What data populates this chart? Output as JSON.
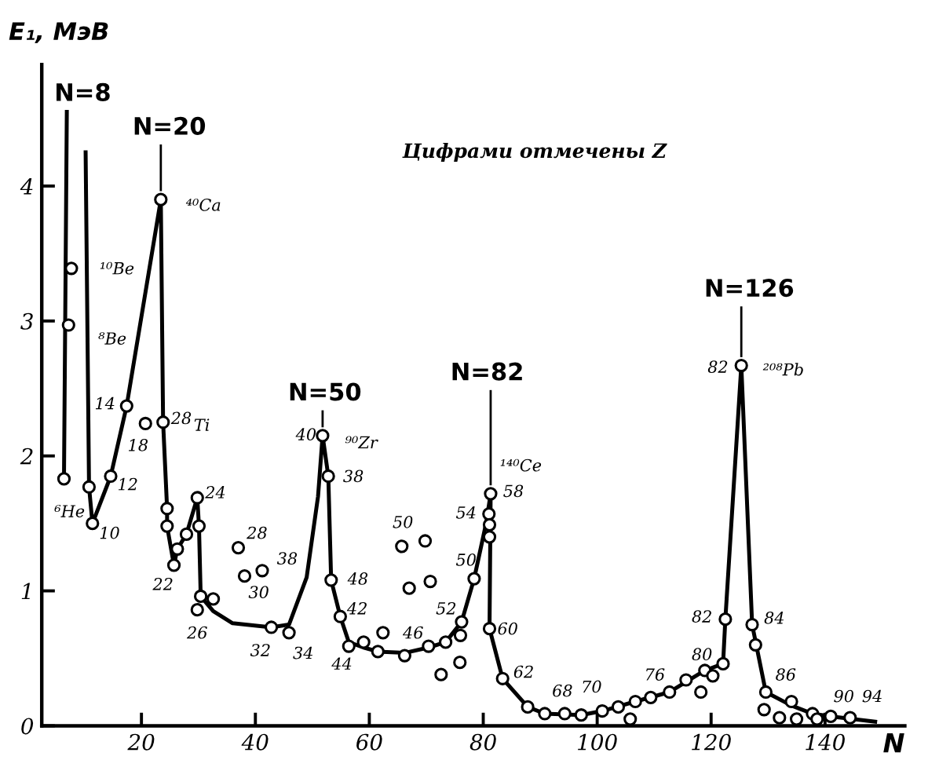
{
  "chart_data": {
    "type": "line",
    "xlabel": "N",
    "ylabel": "E₁, МэВ",
    "xlim": [
      2.5,
      154
    ],
    "ylim": [
      0,
      4.9
    ],
    "xticks": [
      20,
      40,
      60,
      80,
      100,
      120,
      140
    ],
    "yticks": [
      0,
      1,
      2,
      3,
      4
    ],
    "grid": false,
    "legend": false,
    "series": [
      {
        "color": "#000000",
        "marker": "none",
        "line_style": "solid",
        "x": [
          6.4,
          6.9
        ],
        "values": [
          1.83,
          4.55
        ]
      },
      {
        "color": "#000000",
        "marker": "none",
        "line_style": "solid",
        "x": [
          10.2,
          10.8,
          11.4,
          14.6,
          17.4,
          23.4,
          23.8,
          24.5,
          24.5,
          25.7,
          26.3,
          27.9,
          29.8,
          30.1,
          30.4,
          32.6,
          36,
          42.8,
          45.9,
          49,
          51,
          51.8,
          52.8,
          53.3,
          54.9,
          56.4,
          59,
          61.5,
          66.2,
          70.4,
          73.4,
          76.2,
          78.4,
          80.5,
          81.3,
          81.1,
          83.4,
          87.8,
          90.8,
          97.2,
          100.9,
          106.7,
          112.7,
          118.9,
          122.1,
          122.5,
          125.3,
          127.2,
          129.6,
          134.1,
          137.8,
          141,
          148.8
        ],
        "values": [
          4.25,
          1.77,
          1.5,
          1.85,
          2.37,
          3.9,
          2.25,
          1.61,
          1.48,
          1.19,
          1.31,
          1.42,
          1.69,
          1.48,
          0.96,
          0.85,
          0.76,
          0.73,
          0.75,
          1.1,
          1.7,
          2.15,
          1.85,
          1.08,
          0.81,
          0.62,
          0.58,
          0.55,
          0.54,
          0.58,
          0.62,
          0.77,
          1.09,
          1.5,
          1.72,
          0.72,
          0.35,
          0.14,
          0.09,
          0.08,
          0.11,
          0.18,
          0.25,
          0.41,
          0.46,
          0.79,
          2.67,
          0.75,
          0.25,
          0.15,
          0.09,
          0.07,
          0.03
        ]
      },
      {
        "type": "scatter",
        "color": "#000000",
        "marker": "circle",
        "x": [
          6.4,
          7.2,
          7.7,
          10.8,
          11.4,
          14.6,
          17.4,
          20.7,
          23.4,
          23.8,
          24.5,
          24.5,
          25.7,
          26.3,
          27.9,
          29.8,
          30.1,
          30.4,
          29.8,
          32.6,
          37,
          38.1,
          41.2,
          42.8,
          45.9,
          51.8,
          52.8,
          53.3,
          54.9,
          56.4,
          59,
          61.5,
          62.4,
          65.7,
          67,
          69.8,
          70.7,
          66.2,
          70.4,
          72.6,
          73.4,
          75.9,
          76,
          76.2,
          78.4,
          81,
          81.1,
          81.1,
          81.3,
          81.1,
          83.4,
          87.8,
          90.8,
          94.3,
          97.2,
          100.9,
          103.7,
          105.8,
          106.7,
          109.4,
          112.7,
          115.6,
          118.2,
          118.9,
          120.3,
          122.1,
          122.5,
          125.3,
          127.2,
          127.8,
          129.3,
          129.6,
          132,
          134.1,
          135,
          137.8,
          138.6,
          141,
          144.4
        ],
        "values": [
          1.83,
          2.97,
          3.39,
          1.77,
          1.5,
          1.85,
          2.37,
          2.24,
          3.9,
          2.25,
          1.61,
          1.48,
          1.19,
          1.31,
          1.42,
          1.69,
          1.48,
          0.96,
          0.86,
          0.94,
          1.32,
          1.11,
          1.15,
          0.73,
          0.69,
          2.15,
          1.85,
          1.08,
          0.81,
          0.59,
          0.62,
          0.55,
          0.69,
          1.33,
          1.02,
          1.37,
          1.07,
          0.52,
          0.59,
          0.38,
          0.62,
          0.47,
          0.67,
          0.77,
          1.09,
          1.57,
          1.49,
          1.4,
          1.72,
          0.72,
          0.35,
          0.14,
          0.09,
          0.09,
          0.08,
          0.11,
          0.14,
          0.05,
          0.18,
          0.21,
          0.25,
          0.34,
          0.25,
          0.41,
          0.37,
          0.46,
          0.79,
          2.67,
          0.75,
          0.6,
          0.12,
          0.25,
          0.06,
          0.18,
          0.05,
          0.09,
          0.05,
          0.07,
          0.06
        ]
      }
    ],
    "annotations": [
      "N=8",
      {
        "text": "N=20",
        "x": 23.4,
        "y": 3.9
      },
      {
        "text": "N=50",
        "x": 51.8,
        "y": 2.15
      },
      {
        "text": "N=82",
        "x": 81.3,
        "y": 1.72
      },
      {
        "text": "N=126",
        "x": 125.3,
        "y": 2.67
      },
      "Цифрами отмечены Z",
      "⁶He",
      "10",
      "12",
      "14",
      "18",
      "28",
      "Ti",
      "24",
      "22",
      "26",
      "¹⁰Be",
      "⁸Be",
      "⁴⁰Ca",
      "28",
      "30",
      "38",
      "32",
      "34",
      "40",
      "⁹⁰Zr",
      "38",
      "48",
      "42",
      "44",
      "46",
      "50",
      "52",
      "50",
      "54",
      "58",
      "¹⁴⁰Ce",
      "60",
      "62",
      "68",
      "70",
      "76",
      "80",
      "82",
      "84",
      "86",
      "90",
      "94",
      "82",
      "²⁰⁸Pb"
    ]
  }
}
